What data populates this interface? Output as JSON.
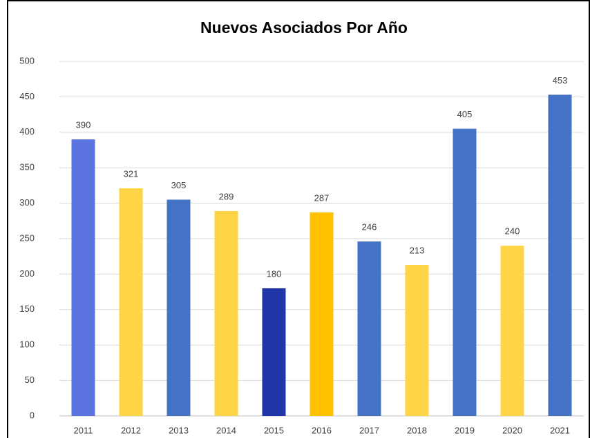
{
  "chart_data": {
    "type": "bar",
    "title": "Nuevos Asociados Por Año",
    "categories": [
      "2011",
      "2012",
      "2013",
      "2014",
      "2015",
      "2016",
      "2017",
      "2018",
      "2019",
      "2020",
      "2021"
    ],
    "values": [
      390,
      321,
      305,
      289,
      180,
      287,
      246,
      213,
      405,
      240,
      453
    ],
    "colors": [
      "#5b73e0",
      "#ffd447",
      "#4472c4",
      "#ffd447",
      "#1f35a8",
      "#ffc000",
      "#4472c4",
      "#ffd447",
      "#4472c4",
      "#ffd447",
      "#4472c4"
    ],
    "ylim": [
      0,
      500
    ],
    "yticks": [
      0,
      50,
      100,
      150,
      200,
      250,
      300,
      350,
      400,
      450,
      500
    ],
    "grid": true
  }
}
